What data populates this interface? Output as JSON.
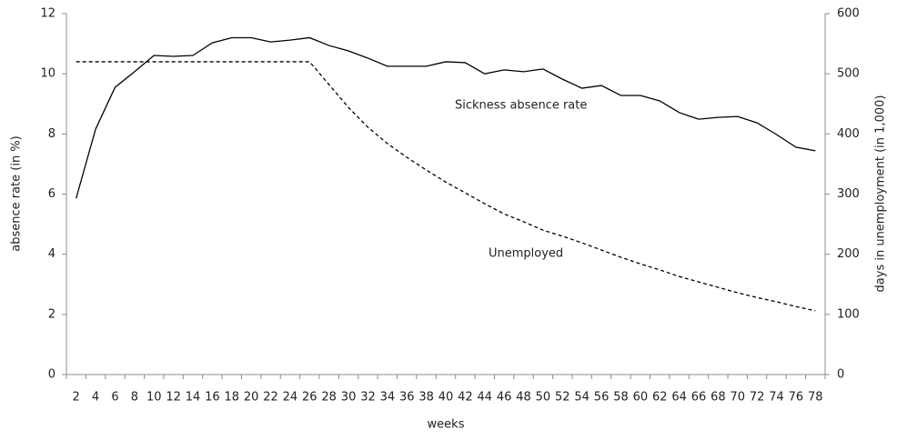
{
  "chart_data": {
    "type": "line",
    "x_label": "weeks",
    "y_label": "absence rate (in %)",
    "y2_label": "days in unemployment (in 1,000)",
    "categories": [
      "2",
      "4",
      "6",
      "8",
      "10",
      "12",
      "14",
      "16",
      "18",
      "20",
      "22",
      "24",
      "26",
      "28",
      "30",
      "32",
      "34",
      "36",
      "38",
      "40",
      "42",
      "44",
      "46",
      "48",
      "50",
      "52",
      "54",
      "56",
      "58",
      "60",
      "62",
      "64",
      "66",
      "68",
      "70",
      "72",
      "74",
      "76",
      "78"
    ],
    "ylim": [
      0,
      12
    ],
    "yticks": [
      0,
      2,
      4,
      6,
      8,
      10,
      12
    ],
    "y2lim": [
      0,
      600
    ],
    "y2ticks": [
      0,
      100,
      200,
      300,
      400,
      500,
      600
    ],
    "grid": false,
    "series": [
      {
        "name": "Sickness absence rate",
        "color": "#000000",
        "dashed": false,
        "values": [
          5.86,
          8.16,
          9.55,
          10.07,
          10.61,
          10.58,
          10.61,
          11.03,
          11.2,
          11.2,
          11.06,
          11.12,
          11.2,
          10.94,
          10.76,
          10.52,
          10.25,
          10.25,
          10.25,
          10.4,
          10.37,
          10.0,
          10.13,
          10.07,
          10.16,
          9.82,
          9.52,
          9.61,
          9.28,
          9.28,
          9.1,
          8.71,
          8.49,
          8.55,
          8.58,
          8.37,
          7.98,
          7.56,
          7.44
        ]
      },
      {
        "name": "Unemployed",
        "color": "#000000",
        "dashed": true,
        "axis": "y2",
        "values": [
          520,
          520,
          520,
          520,
          520,
          520,
          520,
          520,
          520,
          520,
          520,
          520,
          520,
          482,
          444,
          411,
          384,
          361,
          340,
          320,
          302,
          284,
          267,
          254,
          240,
          230,
          219,
          207,
          195,
          184,
          174,
          163,
          154,
          145,
          136,
          128,
          121,
          113,
          106
        ]
      }
    ]
  }
}
